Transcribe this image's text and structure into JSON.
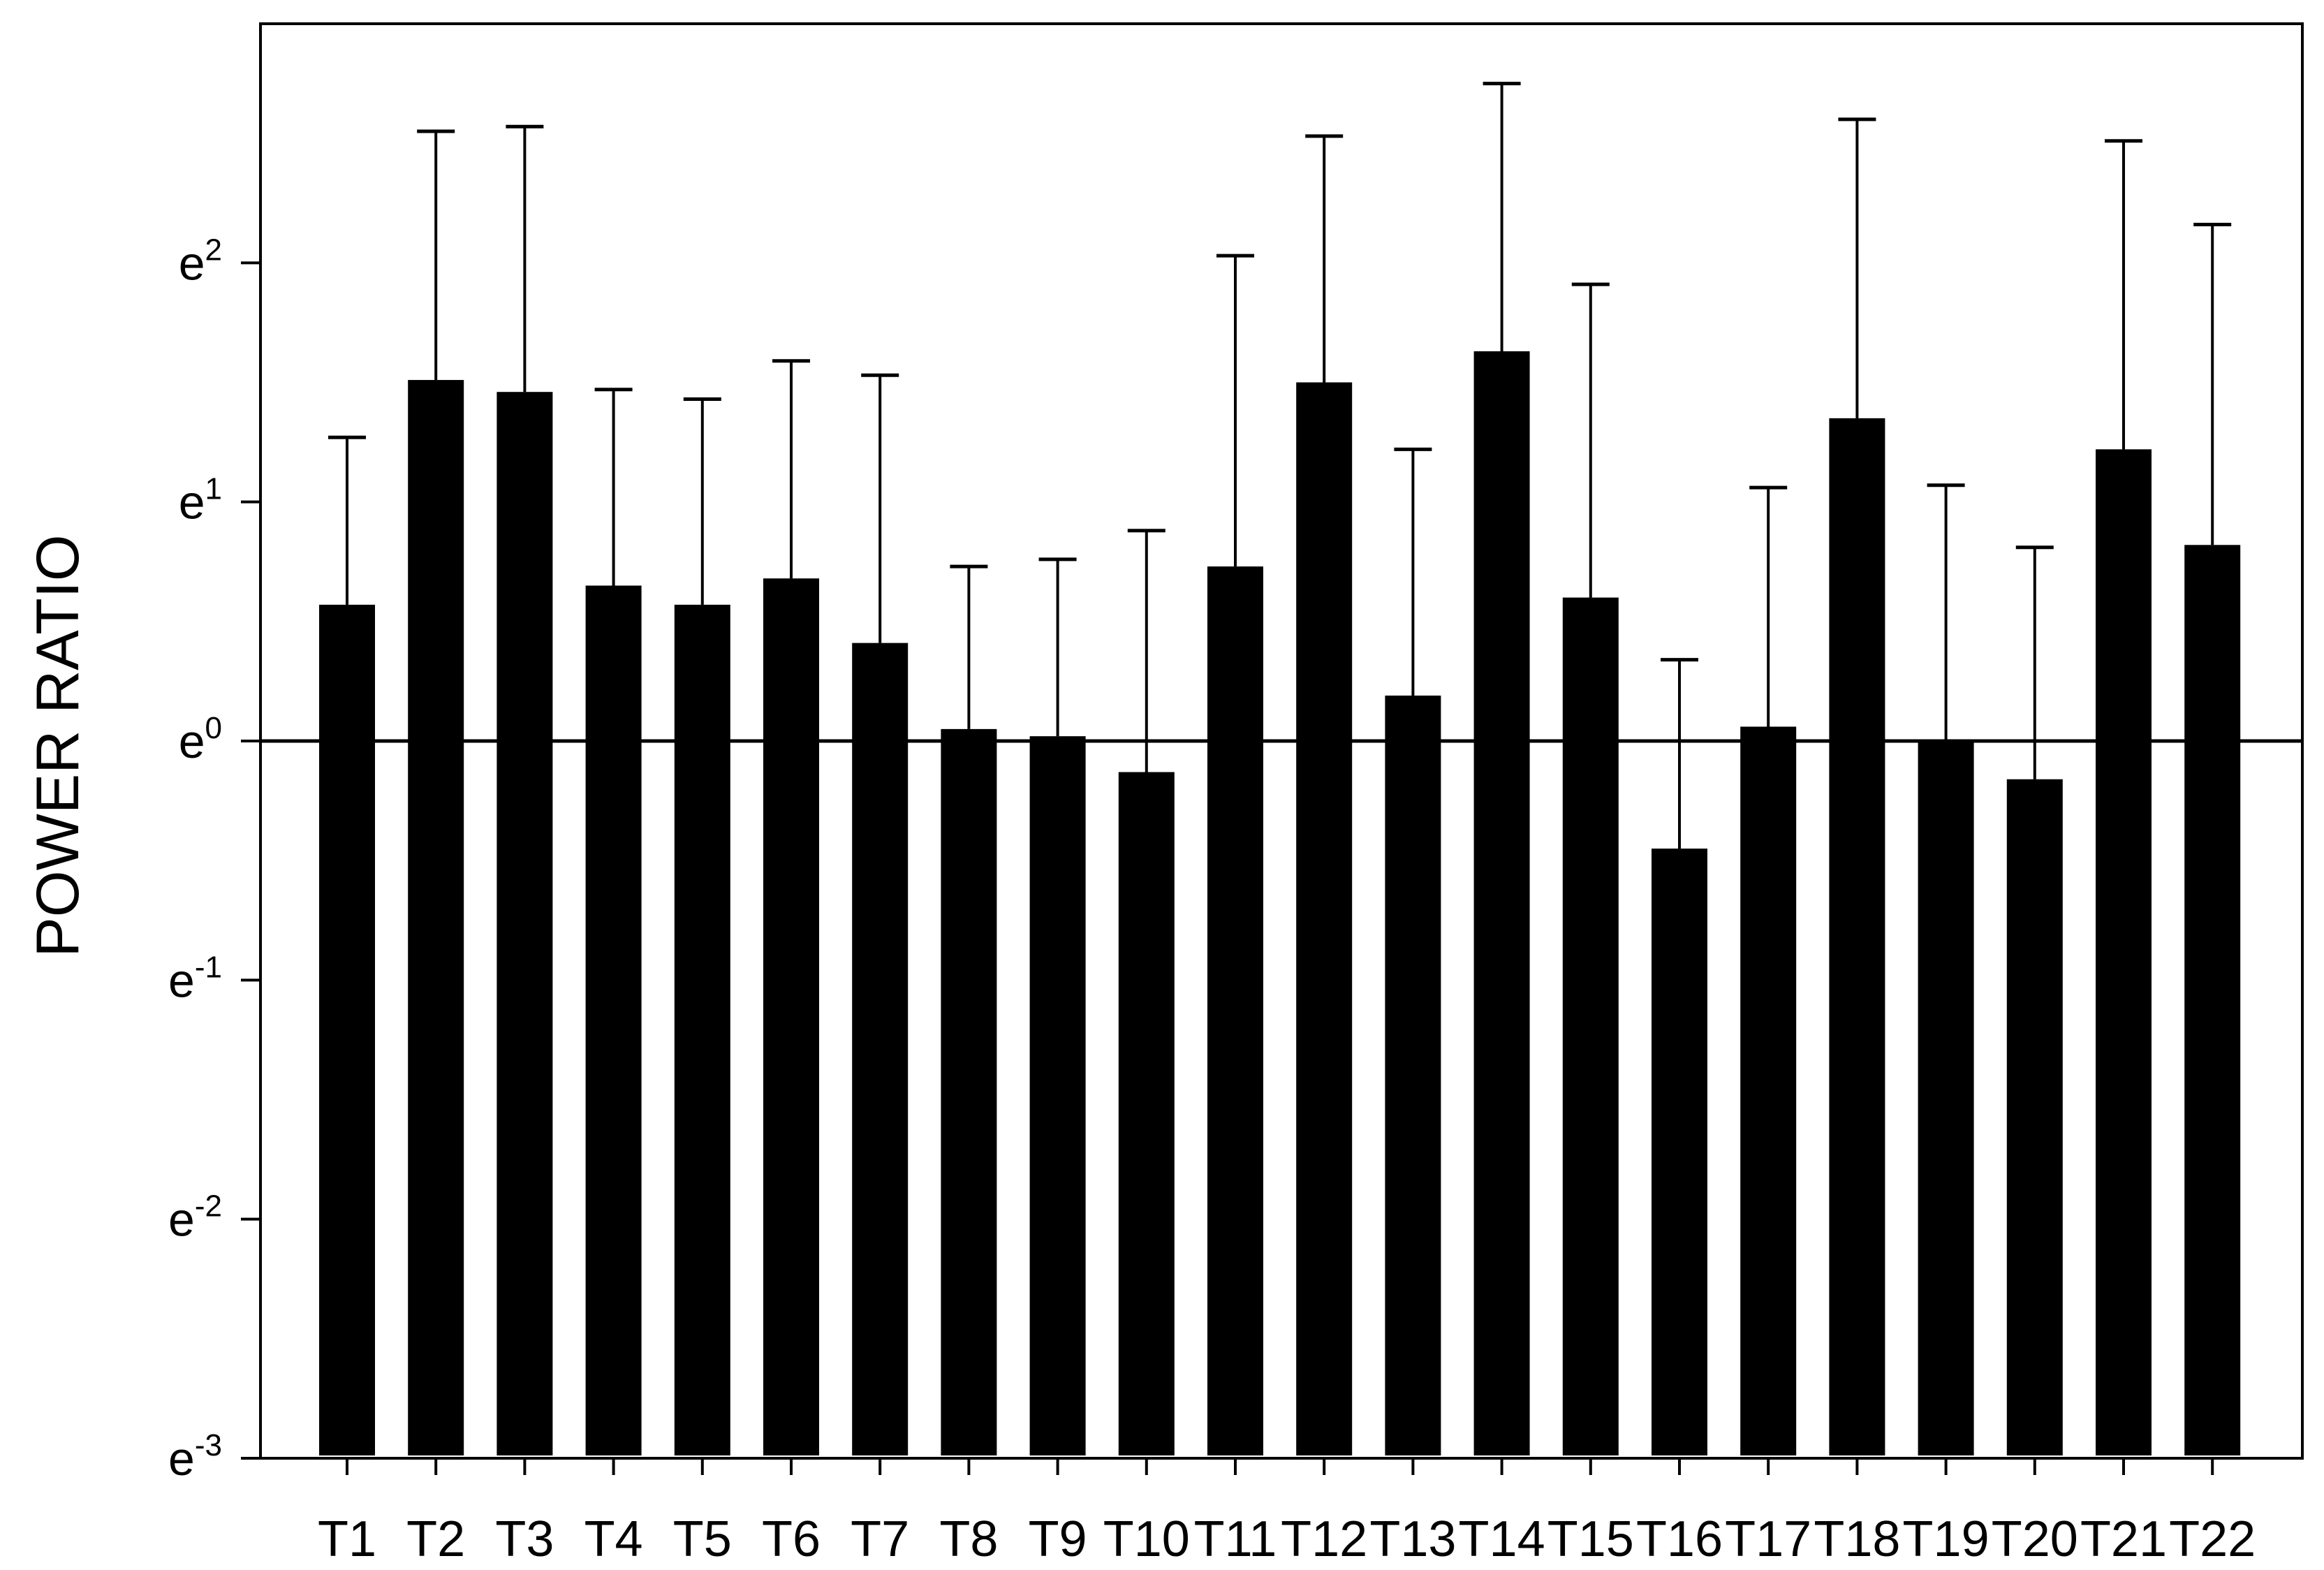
{
  "chart_data": {
    "type": "bar",
    "title": "",
    "xlabel": "",
    "ylabel": "POWER RATIO",
    "y_scale": "log (base e)",
    "ylim": [
      -3,
      3
    ],
    "y_ticks": [
      {
        "base": "e",
        "exp": "2"
      },
      {
        "base": "e",
        "exp": "1"
      },
      {
        "base": "e",
        "exp": "0"
      },
      {
        "base": "e",
        "exp": "-1"
      },
      {
        "base": "e",
        "exp": "-2"
      },
      {
        "base": "e",
        "exp": "-3"
      }
    ],
    "y_tick_values": [
      2,
      1,
      0,
      -1,
      -2,
      -3
    ],
    "reference_line": 0,
    "bar_color": "#000000",
    "grid": false,
    "legend": "none",
    "categories": [
      "T1",
      "T2",
      "T3",
      "T4",
      "T5",
      "T6",
      "T7",
      "T8",
      "T9",
      "T10",
      "T11",
      "T12",
      "T13",
      "T14",
      "T15",
      "T16",
      "T17",
      "T18",
      "T19",
      "T20",
      "T21",
      "T22"
    ],
    "values": [
      0.57,
      1.51,
      1.46,
      0.65,
      0.57,
      0.68,
      0.41,
      0.05,
      0.02,
      -0.13,
      0.73,
      1.5,
      0.19,
      1.63,
      0.6,
      -0.45,
      0.06,
      1.35,
      0.0,
      -0.16,
      1.22,
      0.82
    ],
    "error_upper": [
      1.27,
      2.55,
      2.57,
      1.47,
      1.43,
      1.59,
      1.53,
      0.73,
      0.76,
      0.88,
      2.03,
      2.53,
      1.22,
      2.75,
      1.91,
      0.34,
      1.06,
      2.6,
      1.07,
      0.81,
      2.51,
      2.16
    ]
  }
}
